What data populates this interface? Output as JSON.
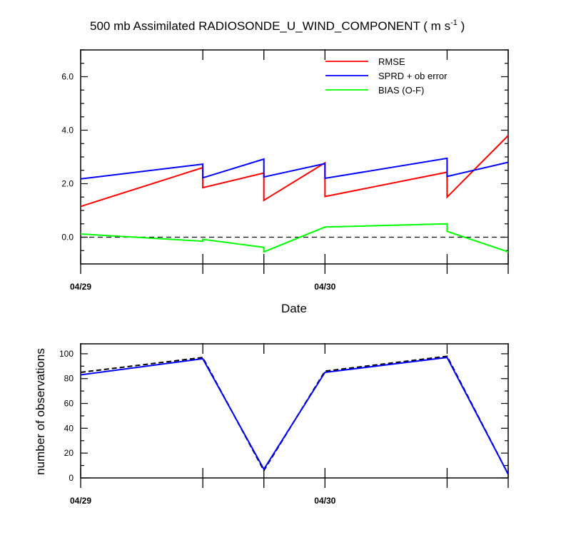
{
  "chart_data": [
    {
      "type": "line",
      "title_main": "500 mb Assimilated RADIOSONDE_U_WIND_COMPONENT ( m s",
      "title_sup": "-1",
      "title_end": " )",
      "xlabel": "Date",
      "ylabel": "",
      "ylim": [
        -1.0,
        7.0
      ],
      "xlim": [
        0,
        84
      ],
      "y_ticks": [
        0.0,
        2.0,
        4.0,
        6.0
      ],
      "y_tick_labels": [
        "0.0",
        "2.0",
        "4.0",
        "6.0"
      ],
      "x_date_ticks": [
        {
          "x": 0,
          "label": "04/29"
        },
        {
          "x": 48,
          "label": "04/30"
        }
      ],
      "x_major_ticks": [
        0,
        24,
        36,
        48,
        72,
        84
      ],
      "zero_line": true,
      "legend": [
        {
          "name": "RMSE",
          "color": "#ff0000"
        },
        {
          "name": "SPRD + ob error",
          "color": "#0000ff"
        },
        {
          "name": "BIAS (O-F)",
          "color": "#00ff00"
        }
      ],
      "series": [
        {
          "name": "RMSE",
          "color": "#ff0000",
          "x": [
            0,
            24,
            24,
            36,
            36,
            48,
            48,
            72,
            72,
            84
          ],
          "y": [
            1.15,
            2.6,
            1.85,
            2.4,
            1.38,
            2.78,
            1.52,
            2.43,
            1.5,
            3.8
          ]
        },
        {
          "name": "SPRD + ob error",
          "color": "#0000ff",
          "x": [
            0,
            24,
            24,
            36,
            36,
            48,
            48,
            72,
            72,
            84
          ],
          "y": [
            2.18,
            2.73,
            2.22,
            2.92,
            2.25,
            2.75,
            2.2,
            2.95,
            2.27,
            2.8
          ]
        },
        {
          "name": "BIAS (O-F)",
          "color": "#00ff00",
          "x": [
            0,
            24,
            24,
            36,
            36,
            48,
            72,
            72,
            84
          ],
          "y": [
            0.12,
            -0.15,
            -0.08,
            -0.38,
            -0.55,
            0.38,
            0.5,
            0.22,
            -0.55
          ]
        }
      ]
    },
    {
      "type": "line",
      "xlabel": "",
      "ylabel": "number of observations",
      "ylim": [
        0,
        108
      ],
      "xlim": [
        0,
        84
      ],
      "y_ticks": [
        0,
        20,
        40,
        60,
        80,
        100
      ],
      "y_tick_labels": [
        "0",
        "20",
        "40",
        "60",
        "80",
        "100"
      ],
      "x_date_ticks": [
        {
          "x": 0,
          "label": "04/29"
        },
        {
          "x": 48,
          "label": "04/30"
        }
      ],
      "x_major_ticks": [
        0,
        24,
        36,
        48,
        72,
        84
      ],
      "series": [
        {
          "name": "observations (dashed)",
          "color": "#000000",
          "dashed": true,
          "x": [
            0,
            24,
            36,
            48,
            72,
            84
          ],
          "y": [
            85,
            97,
            6,
            86,
            98,
            3
          ]
        },
        {
          "name": "observations",
          "color": "#0000ff",
          "dashed": false,
          "x": [
            0,
            24,
            36,
            48,
            72,
            84
          ],
          "y": [
            83,
            96,
            7,
            85,
            97,
            3
          ]
        }
      ]
    }
  ]
}
